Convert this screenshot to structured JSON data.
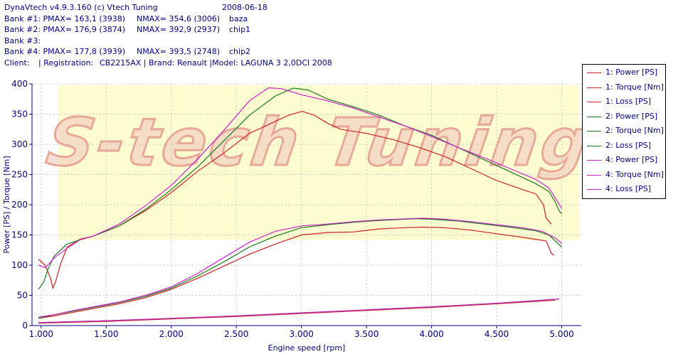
{
  "header": {
    "lines": [
      [
        "DynaVtech v4.9.3.160 (c) Vtech Tuning",
        "2008-06-18"
      ],
      [
        "Bank #1: PMAX= 163,1 (3938)",
        "NMAX= 354,6 (3006)",
        "baza"
      ],
      [
        "Bank #2: PMAX= 176,9 (3874)",
        "NMAX= 392,9 (2937)",
        "chip1"
      ],
      [
        "Bank #3:"
      ],
      [
        "Bank #4: PMAX= 177,8 (3939)",
        "NMAX= 393,5 (2748)",
        "chip2"
      ],
      [
        "Client:",
        "| Registration:",
        "CB2215AX | Brand: Renault |Model: LAGUNA 3 2,0DCI 2008"
      ]
    ]
  },
  "watermark": "S-tech Tuning",
  "legend": [
    {
      "label": "1: Power [PS]",
      "color": "#cc2222"
    },
    {
      "label": "1: Torque [Nm]",
      "color": "#cc2222"
    },
    {
      "label": "1: Loss [PS]",
      "color": "#cc2222"
    },
    {
      "label": "2: Power [PS]",
      "color": "#1a7a1a"
    },
    {
      "label": "2: Torque [Nm]",
      "color": "#1a7a1a"
    },
    {
      "label": "2: Loss [PS]",
      "color": "#1a7a1a"
    },
    {
      "label": "4: Power [PS]",
      "color": "#cc22cc"
    },
    {
      "label": "4: Torque [Nm]",
      "color": "#cc22cc"
    },
    {
      "label": "4: Loss [PS]",
      "color": "#cc22cc"
    }
  ],
  "chart_data": {
    "type": "line",
    "xlabel": "Engine speed [rpm]",
    "ylabel": "Power [PS] / Torque [Nm]",
    "xlim": [
      930,
      5150
    ],
    "ylim": [
      0,
      400
    ],
    "x_ticks": [
      1000,
      1500,
      2000,
      2500,
      3000,
      3500,
      4000,
      4500,
      5000
    ],
    "x_tick_labels": [
      "1.000",
      "1.500",
      "2.000",
      "2.500",
      "3.000",
      "3.500",
      "4.000",
      "4.500",
      "5.000"
    ],
    "y_ticks": [
      0,
      50,
      100,
      150,
      200,
      250,
      300,
      350,
      400
    ],
    "series": [
      {
        "name": "1: Power [PS]",
        "color": "#cc2222",
        "points": [
          [
            980,
            12
          ],
          [
            1100,
            16
          ],
          [
            1250,
            22
          ],
          [
            1400,
            28
          ],
          [
            1600,
            36
          ],
          [
            1800,
            46
          ],
          [
            2000,
            60
          ],
          [
            2200,
            78
          ],
          [
            2400,
            98
          ],
          [
            2600,
            118
          ],
          [
            2800,
            135
          ],
          [
            3000,
            150
          ],
          [
            3200,
            154
          ],
          [
            3400,
            155
          ],
          [
            3600,
            160
          ],
          [
            3800,
            162
          ],
          [
            3938,
            163
          ],
          [
            4100,
            162
          ],
          [
            4300,
            158
          ],
          [
            4500,
            152
          ],
          [
            4700,
            146
          ],
          [
            4880,
            140
          ],
          [
            4920,
            120
          ],
          [
            4940,
            116
          ]
        ]
      },
      {
        "name": "1: Torque [Nm]",
        "color": "#cc2222",
        "points": [
          [
            980,
            110
          ],
          [
            1030,
            100
          ],
          [
            1070,
            80
          ],
          [
            1090,
            62
          ],
          [
            1110,
            72
          ],
          [
            1150,
            102
          ],
          [
            1200,
            130
          ],
          [
            1300,
            143
          ],
          [
            1400,
            148
          ],
          [
            1600,
            165
          ],
          [
            1800,
            190
          ],
          [
            2000,
            220
          ],
          [
            2200,
            255
          ],
          [
            2400,
            285
          ],
          [
            2600,
            318
          ],
          [
            2800,
            338
          ],
          [
            2900,
            348
          ],
          [
            3006,
            354.6
          ],
          [
            3100,
            348
          ],
          [
            3200,
            335
          ],
          [
            3300,
            325
          ],
          [
            3500,
            318
          ],
          [
            3700,
            308
          ],
          [
            3900,
            295
          ],
          [
            4100,
            280
          ],
          [
            4300,
            260
          ],
          [
            4500,
            240
          ],
          [
            4700,
            225
          ],
          [
            4800,
            218
          ],
          [
            4860,
            200
          ],
          [
            4880,
            178
          ],
          [
            4920,
            168
          ]
        ]
      },
      {
        "name": "1: Loss [PS]",
        "color": "#cc2222",
        "points": [
          [
            980,
            4
          ],
          [
            1500,
            7
          ],
          [
            2000,
            11
          ],
          [
            2500,
            15
          ],
          [
            3000,
            20
          ],
          [
            3500,
            25
          ],
          [
            4000,
            30
          ],
          [
            4500,
            36
          ],
          [
            4950,
            42
          ]
        ]
      },
      {
        "name": "2: Power [PS]",
        "color": "#1a7a1a",
        "points": [
          [
            980,
            12
          ],
          [
            1100,
            18
          ],
          [
            1250,
            24
          ],
          [
            1400,
            30
          ],
          [
            1600,
            38
          ],
          [
            1800,
            48
          ],
          [
            2000,
            62
          ],
          [
            2200,
            82
          ],
          [
            2400,
            105
          ],
          [
            2600,
            130
          ],
          [
            2800,
            148
          ],
          [
            3000,
            162
          ],
          [
            3200,
            167
          ],
          [
            3400,
            171
          ],
          [
            3600,
            174
          ],
          [
            3874,
            176.9
          ],
          [
            4000,
            176
          ],
          [
            4200,
            173
          ],
          [
            4400,
            168
          ],
          [
            4600,
            163
          ],
          [
            4800,
            157
          ],
          [
            4900,
            150
          ],
          [
            4970,
            136
          ],
          [
            5000,
            130
          ]
        ]
      },
      {
        "name": "2: Torque [Nm]",
        "color": "#1a7a1a",
        "points": [
          [
            980,
            60
          ],
          [
            1020,
            72
          ],
          [
            1050,
            92
          ],
          [
            1100,
            115
          ],
          [
            1200,
            135
          ],
          [
            1300,
            142
          ],
          [
            1400,
            148
          ],
          [
            1600,
            165
          ],
          [
            1800,
            192
          ],
          [
            2000,
            225
          ],
          [
            2200,
            262
          ],
          [
            2400,
            305
          ],
          [
            2600,
            348
          ],
          [
            2800,
            380
          ],
          [
            2937,
            392.9
          ],
          [
            3050,
            390
          ],
          [
            3200,
            375
          ],
          [
            3400,
            362
          ],
          [
            3600,
            348
          ],
          [
            3800,
            330
          ],
          [
            4000,
            315
          ],
          [
            4200,
            295
          ],
          [
            4400,
            275
          ],
          [
            4600,
            255
          ],
          [
            4800,
            235
          ],
          [
            4900,
            222
          ],
          [
            4950,
            205
          ],
          [
            4980,
            190
          ],
          [
            5000,
            185
          ]
        ]
      },
      {
        "name": "2: Loss [PS]",
        "color": "#1a7a1a",
        "points": [
          [
            980,
            5
          ],
          [
            1500,
            8
          ],
          [
            2000,
            12
          ],
          [
            2500,
            16
          ],
          [
            3000,
            21
          ],
          [
            3500,
            26
          ],
          [
            4000,
            31
          ],
          [
            4500,
            37
          ],
          [
            4980,
            44
          ]
        ]
      },
      {
        "name": "4: Power [PS]",
        "color": "#cc22cc",
        "points": [
          [
            980,
            14
          ],
          [
            1100,
            18
          ],
          [
            1250,
            25
          ],
          [
            1400,
            31
          ],
          [
            1600,
            39
          ],
          [
            1800,
            50
          ],
          [
            2000,
            64
          ],
          [
            2200,
            86
          ],
          [
            2400,
            112
          ],
          [
            2600,
            138
          ],
          [
            2800,
            156
          ],
          [
            3000,
            165
          ],
          [
            3200,
            168
          ],
          [
            3400,
            172
          ],
          [
            3600,
            175
          ],
          [
            3939,
            177.8
          ],
          [
            4100,
            176
          ],
          [
            4300,
            172
          ],
          [
            4500,
            167
          ],
          [
            4700,
            162
          ],
          [
            4850,
            156
          ],
          [
            4950,
            145
          ],
          [
            5000,
            136
          ]
        ]
      },
      {
        "name": "4: Torque [Nm]",
        "color": "#cc22cc",
        "points": [
          [
            980,
            100
          ],
          [
            1030,
            96
          ],
          [
            1060,
            102
          ],
          [
            1100,
            112
          ],
          [
            1200,
            128
          ],
          [
            1300,
            142
          ],
          [
            1400,
            148
          ],
          [
            1600,
            168
          ],
          [
            1800,
            198
          ],
          [
            2000,
            232
          ],
          [
            2200,
            275
          ],
          [
            2400,
            322
          ],
          [
            2600,
            372
          ],
          [
            2748,
            393.5
          ],
          [
            2850,
            392
          ],
          [
            3000,
            382
          ],
          [
            3200,
            372
          ],
          [
            3400,
            360
          ],
          [
            3600,
            345
          ],
          [
            3800,
            330
          ],
          [
            4000,
            313
          ],
          [
            4200,
            295
          ],
          [
            4400,
            278
          ],
          [
            4600,
            260
          ],
          [
            4800,
            242
          ],
          [
            4900,
            228
          ],
          [
            4960,
            208
          ],
          [
            5000,
            194
          ]
        ]
      },
      {
        "name": "4: Loss [PS]",
        "color": "#cc22cc",
        "points": [
          [
            980,
            5
          ],
          [
            1500,
            8
          ],
          [
            2000,
            12
          ],
          [
            2500,
            16
          ],
          [
            3000,
            21
          ],
          [
            3500,
            26
          ],
          [
            4000,
            31
          ],
          [
            4500,
            37
          ],
          [
            4980,
            44
          ]
        ]
      }
    ]
  }
}
